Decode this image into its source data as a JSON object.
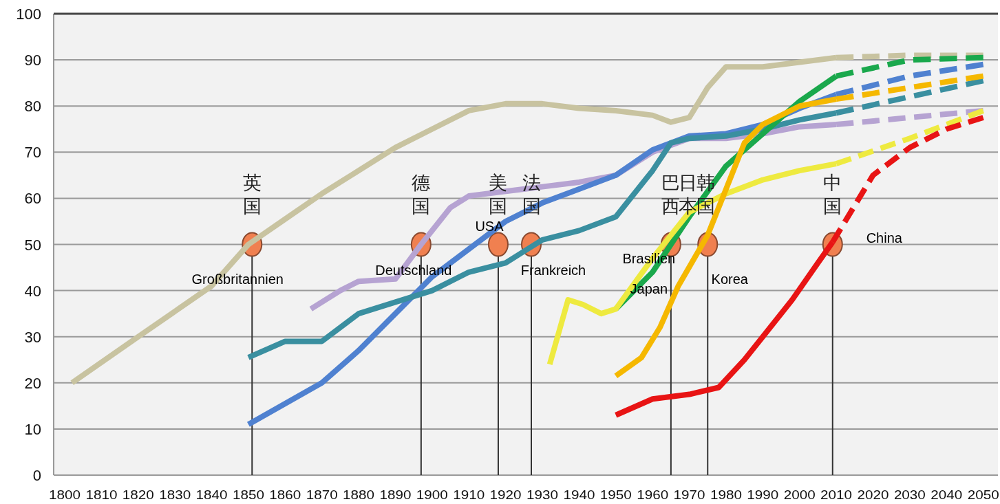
{
  "chart_data": {
    "type": "line",
    "xlim": [
      1797,
      2054
    ],
    "ylim": [
      0,
      100
    ],
    "xticks": [
      1800,
      1810,
      1820,
      1830,
      1840,
      1850,
      1860,
      1870,
      1880,
      1890,
      1900,
      1910,
      1920,
      1930,
      1940,
      1950,
      1960,
      1970,
      1980,
      1990,
      2000,
      2010,
      2020,
      2030,
      2040,
      2050
    ],
    "yticks": [
      0,
      10,
      20,
      30,
      40,
      50,
      60,
      70,
      80,
      90,
      100
    ],
    "grid": "y",
    "line_style": "solid",
    "series": [
      {
        "color": "#c8c3a0",
        "x": [
          1802,
          1820,
          1840,
          1850,
          1860,
          1870,
          1880,
          1890,
          1900,
          1910,
          1920,
          1930,
          1940,
          1950,
          1960,
          1965,
          1970,
          1975,
          1980,
          1990,
          2000,
          2010
        ],
        "values": [
          20,
          30,
          41,
          50,
          55.5,
          61,
          66,
          71,
          75,
          79,
          80.5,
          80.5,
          79.5,
          79,
          78,
          76.5,
          77.5,
          84,
          88.5,
          88.5,
          89.5,
          90.5
        ]
      },
      {
        "color": "#c8c3a0",
        "line_style": "dashed",
        "x": [
          2010,
          2030,
          2050
        ],
        "values": [
          90.5,
          91,
          91
        ]
      },
      {
        "color": "#b6a3d2",
        "x": [
          1867,
          1875,
          1880,
          1890,
          1897,
          1905,
          1910,
          1920,
          1930,
          1940,
          1950,
          1960,
          1970,
          1980,
          1990,
          2000,
          2010
        ],
        "values": [
          36,
          40,
          42,
          42.5,
          50,
          58,
          60.5,
          61.5,
          62.5,
          63.5,
          65,
          70,
          73,
          73,
          74,
          75.5,
          76
        ]
      },
      {
        "color": "#b6a3d2",
        "line_style": "dashed",
        "x": [
          2010,
          2030,
          2050
        ],
        "values": [
          76,
          77.5,
          79
        ]
      },
      {
        "color": "#4f81d0",
        "x": [
          1850,
          1870,
          1880,
          1890,
          1900,
          1910,
          1920,
          1930,
          1940,
          1950,
          1960,
          1970,
          1980,
          1990,
          2000,
          2010
        ],
        "values": [
          11,
          20,
          27,
          35,
          43,
          49,
          55,
          59,
          62,
          65,
          70.5,
          73.5,
          74,
          76,
          79.5,
          82.5
        ]
      },
      {
        "color": "#4f81d0",
        "line_style": "dashed",
        "x": [
          2010,
          2030,
          2050
        ],
        "values": [
          82.5,
          86.5,
          89
        ]
      },
      {
        "color": "#3a8fa0",
        "x": [
          1850,
          1860,
          1870,
          1880,
          1890,
          1900,
          1910,
          1920,
          1930,
          1940,
          1950,
          1960,
          1965,
          1970,
          1980,
          1990,
          2000,
          2010
        ],
        "values": [
          25.5,
          29,
          29,
          35,
          37.5,
          40,
          44,
          46,
          51,
          53,
          56,
          66,
          72,
          73,
          73.5,
          75,
          77,
          78.5
        ]
      },
      {
        "color": "#3a8fa0",
        "line_style": "dashed",
        "x": [
          2010,
          2030,
          2050
        ],
        "values": [
          78.5,
          82,
          85.5
        ]
      },
      {
        "color": "#1aa84c",
        "x": [
          1950,
          1960,
          1970,
          1980,
          1990,
          2000,
          2010
        ],
        "values": [
          36,
          44,
          56,
          67,
          74,
          81,
          86.5
        ]
      },
      {
        "color": "#1aa84c",
        "line_style": "dashed",
        "x": [
          2010,
          2030,
          2050
        ],
        "values": [
          86.5,
          90,
          90.5
        ]
      },
      {
        "color": "#eeea40",
        "x": [
          1932,
          1937,
          1941,
          1946,
          1950,
          1960,
          1970,
          1980,
          1990,
          2000,
          2010
        ],
        "values": [
          24,
          38,
          37,
          35,
          36,
          47,
          57,
          61,
          64,
          66,
          67.5
        ]
      },
      {
        "color": "#eeea40",
        "line_style": "dashed",
        "x": [
          2010,
          2030,
          2050
        ],
        "values": [
          67.5,
          73,
          79
        ]
      },
      {
        "color": "#f5b800",
        "x": [
          1950,
          1957,
          1962,
          1967,
          1975,
          1980,
          1985,
          1990,
          2000,
          2010
        ],
        "values": [
          21.5,
          25.5,
          32,
          41,
          52,
          62,
          72,
          76,
          80,
          81.5
        ]
      },
      {
        "color": "#f5b800",
        "line_style": "dashed",
        "x": [
          2010,
          2030,
          2050
        ],
        "values": [
          81.5,
          84,
          86.5
        ]
      },
      {
        "color": "#e81414",
        "x": [
          1950,
          1960,
          1970,
          1978,
          1985,
          1990,
          1998,
          2005,
          2009
        ],
        "values": [
          13,
          16.5,
          17.5,
          19,
          25,
          30,
          38,
          46,
          50.5
        ]
      },
      {
        "color": "#e81414",
        "line_style": "dashed",
        "x": [
          2009,
          2020,
          2030,
          2040,
          2050
        ],
        "values": [
          50.5,
          65,
          71,
          75,
          77.5
        ]
      },
      {
        "type": "lollipop",
        "color": "#f08050",
        "x": [
          1851,
          1897,
          1918,
          1927,
          1965,
          1975,
          2009
        ],
        "values": [
          50,
          50,
          50,
          50,
          50,
          50,
          50
        ]
      }
    ],
    "annotations": [
      {
        "text": "英国",
        "x": 1851,
        "y": 50
      },
      {
        "text": "德国",
        "x": 1897,
        "y": 50
      },
      {
        "text": "美国",
        "x": 1918,
        "y": 50
      },
      {
        "text": "法国",
        "x": 1927,
        "y": 50
      },
      {
        "text": "巴西",
        "x": 1965,
        "y": 50
      },
      {
        "text": "日本",
        "x": 1965,
        "y": 50
      },
      {
        "text": "韩国",
        "x": 1975,
        "y": 50
      },
      {
        "text": "中国",
        "x": 2009,
        "y": 50
      },
      {
        "text": "Großbritannien",
        "x": 1851,
        "y": 50
      },
      {
        "text": "Deutschland",
        "x": 1897,
        "y": 50
      },
      {
        "text": "USA",
        "x": 1918,
        "y": 50
      },
      {
        "text": "Frankreich",
        "x": 1927,
        "y": 50
      },
      {
        "text": "Brasilien",
        "x": 1965,
        "y": 50
      },
      {
        "text": "Japan",
        "x": 1965,
        "y": 50
      },
      {
        "text": "Korea",
        "x": 1975,
        "y": 50
      },
      {
        "text": "China",
        "x": 2009,
        "y": 50
      }
    ]
  }
}
